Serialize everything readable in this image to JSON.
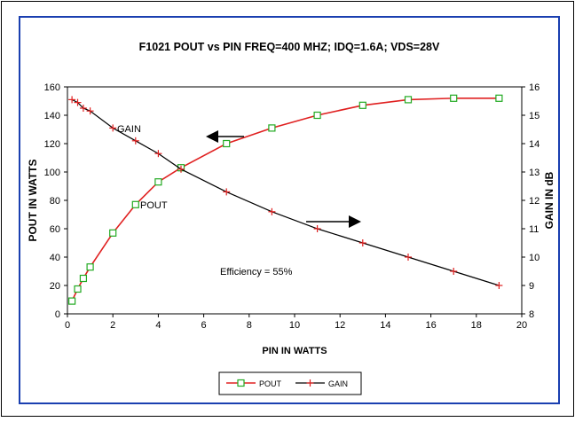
{
  "chart_data": {
    "type": "line",
    "title": "F1021 POUT vs PIN  FREQ=400 MHZ; IDQ=1.6A; VDS=28V",
    "xlabel": "PIN IN WATTS",
    "ylabel_left": "POUT IN WATTS",
    "ylabel_right": "GAIN IN dB",
    "xlim": [
      0,
      20
    ],
    "ylim_left": [
      0,
      160
    ],
    "ylim_right": [
      8,
      16
    ],
    "x_ticks": [
      "0",
      "2",
      "4",
      "6",
      "8",
      "10",
      "12",
      "14",
      "16",
      "18",
      "20"
    ],
    "y_left_ticks": [
      "0",
      "20",
      "40",
      "60",
      "80",
      "100",
      "120",
      "140",
      "160"
    ],
    "y_right_ticks": [
      "8",
      "9",
      "10",
      "11",
      "12",
      "13",
      "14",
      "15",
      "16"
    ],
    "grid": false,
    "legend_placement": "bottom-center",
    "series": [
      {
        "name": "POUT",
        "axis": "left",
        "color": "#e02020",
        "marker": "square",
        "marker_color": "#22aa22",
        "x": [
          0.2,
          0.45,
          0.7,
          1.0,
          2.0,
          3.0,
          4.0,
          5.0,
          7.0,
          9.0,
          11.0,
          13.0,
          15.0,
          17.0,
          19.0
        ],
        "values": [
          9,
          17.5,
          25,
          33,
          57,
          77,
          93,
          103,
          120,
          131,
          140,
          147,
          151,
          152,
          152
        ]
      },
      {
        "name": "GAIN",
        "axis": "right",
        "color": "#000000",
        "marker": "plus",
        "marker_color": "#e02020",
        "x": [
          0.2,
          0.45,
          0.7,
          1.0,
          2.0,
          3.0,
          4.0,
          5.0,
          7.0,
          9.0,
          11.0,
          13.0,
          15.0,
          17.0,
          19.0
        ],
        "values": [
          15.55,
          15.45,
          15.25,
          15.15,
          14.55,
          14.1,
          13.65,
          13.1,
          12.3,
          11.6,
          11.0,
          10.5,
          10.0,
          9.5,
          9.0
        ]
      }
    ],
    "annotations": {
      "gain_label": "GAIN",
      "pout_label": "POUT",
      "efficiency": "Efficiency = 55%"
    }
  }
}
